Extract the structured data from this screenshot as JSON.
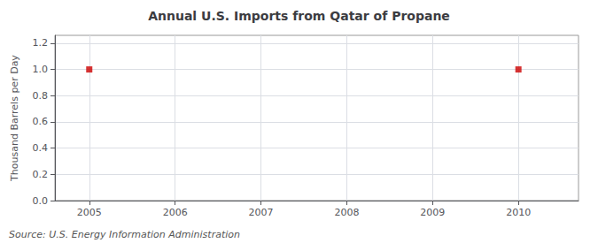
{
  "chart_data": {
    "type": "scatter",
    "title": "Annual U.S. Imports from Qatar of Propane",
    "ylabel": "Thousand Barrels per Day",
    "annotations": [
      "Source: U.S. Energy Information Administration"
    ],
    "x": [
      2005,
      2010
    ],
    "values": [
      1.0,
      1.0
    ],
    "color": "#cc0000",
    "marker": "square",
    "xlim": [
      2004.6,
      2010.7
    ],
    "xticks": [
      2005,
      2006,
      2007,
      2008,
      2009,
      2010
    ],
    "ylim": [
      0.0,
      1.26
    ],
    "yticks": [
      {
        "value": 0.0,
        "label": "0.0"
      },
      0.2,
      0.4,
      0.6,
      0.8,
      {
        "value": 1.0,
        "label": "1.0"
      },
      1.2
    ],
    "grid": true
  }
}
